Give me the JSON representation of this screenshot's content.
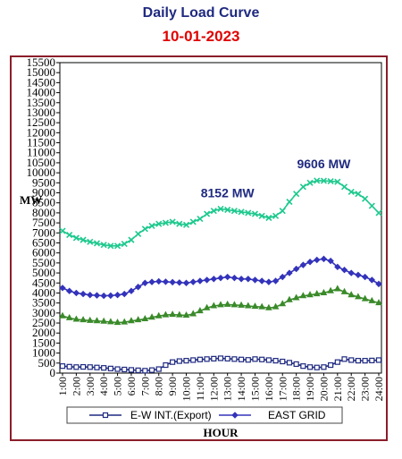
{
  "header": {
    "title": "Daily Load Curve",
    "date": "10-01-2023"
  },
  "colors": {
    "title": "#1f2a80",
    "date": "#e00000",
    "border": "#8b1d2a"
  },
  "chart_data": {
    "type": "line",
    "title": "Daily Load Curve",
    "subtitle": "10-01-2023",
    "xlabel": "HOUR",
    "ylabel": "MW",
    "ylim": [
      0,
      15500
    ],
    "yticks": [
      0,
      500,
      1000,
      1500,
      2000,
      2500,
      3000,
      3500,
      4000,
      4500,
      5000,
      5500,
      6000,
      6500,
      7000,
      7500,
      8000,
      8500,
      9000,
      9500,
      10000,
      10500,
      11000,
      11500,
      12000,
      12500,
      13000,
      13500,
      14000,
      14500,
      15000,
      15500
    ],
    "x": [
      "1:00",
      "1:30",
      "2:00",
      "2:30",
      "3:00",
      "3:30",
      "4:00",
      "4:30",
      "5:00",
      "5:30",
      "6:00",
      "6:30",
      "7:00",
      "7:30",
      "8:00",
      "8:30",
      "9:00",
      "9:30",
      "10:00",
      "10:30",
      "11:00",
      "11:30",
      "12:00",
      "12:30",
      "13:00",
      "13:30",
      "14:00",
      "14:30",
      "15:00",
      "15:30",
      "16:00",
      "16:30",
      "17:00",
      "17:30",
      "18:00",
      "18:30",
      "19:00",
      "19:30",
      "20:00",
      "20:30",
      "21:00",
      "21:30",
      "22:00",
      "22:30",
      "23:00",
      "23:30",
      "24:00"
    ],
    "xtick_labels": [
      "1:00",
      "2:00",
      "3:00",
      "4:00",
      "5:00",
      "6:00",
      "7:00",
      "8:00",
      "9:00",
      "10:00",
      "11:00",
      "12:00",
      "13:00",
      "14:00",
      "15:00",
      "16:00",
      "17:00",
      "18:00",
      "19:00",
      "20:00",
      "21:00",
      "22:00",
      "23:00",
      "24:00"
    ],
    "grid": false,
    "legend_position": "bottom",
    "series": [
      {
        "name": "",
        "color": "#1ec98e",
        "marker": "x",
        "values": [
          7100,
          6900,
          6750,
          6650,
          6550,
          6480,
          6400,
          6350,
          6350,
          6450,
          6650,
          6950,
          7200,
          7350,
          7450,
          7500,
          7550,
          7450,
          7400,
          7550,
          7700,
          7950,
          8100,
          8200,
          8152,
          8100,
          8050,
          8000,
          7950,
          7850,
          7750,
          7850,
          8100,
          8550,
          8950,
          9300,
          9500,
          9606,
          9600,
          9580,
          9550,
          9300,
          9050,
          8950,
          8700,
          8350,
          8000
        ]
      },
      {
        "name": "EAST GRID",
        "color": "#3333bb",
        "marker": "diamond",
        "values": [
          4250,
          4100,
          4000,
          3950,
          3900,
          3880,
          3860,
          3870,
          3900,
          3950,
          4100,
          4300,
          4500,
          4550,
          4580,
          4560,
          4540,
          4520,
          4500,
          4550,
          4600,
          4650,
          4700,
          4750,
          4800,
          4750,
          4700,
          4700,
          4650,
          4600,
          4550,
          4600,
          4800,
          5000,
          5200,
          5400,
          5550,
          5650,
          5700,
          5600,
          5300,
          5150,
          5000,
          4900,
          4800,
          4650,
          4450
        ]
      },
      {
        "name": "",
        "color": "#3a8a2a",
        "marker": "triangle",
        "values": [
          2850,
          2750,
          2680,
          2650,
          2620,
          2600,
          2580,
          2550,
          2520,
          2540,
          2600,
          2650,
          2700,
          2780,
          2850,
          2900,
          2920,
          2900,
          2880,
          2950,
          3100,
          3250,
          3350,
          3400,
          3420,
          3400,
          3380,
          3350,
          3320,
          3300,
          3250,
          3300,
          3450,
          3650,
          3750,
          3850,
          3900,
          3950,
          4000,
          4100,
          4200,
          4050,
          3900,
          3800,
          3700,
          3600,
          3500
        ]
      },
      {
        "name": "E-W INT.(Export)",
        "color": "#1f2a80",
        "marker": "square",
        "values": [
          350,
          320,
          300,
          310,
          300,
          280,
          260,
          230,
          200,
          180,
          160,
          140,
          120,
          150,
          200,
          400,
          550,
          600,
          620,
          650,
          680,
          700,
          720,
          740,
          720,
          700,
          680,
          660,
          700,
          680,
          650,
          620,
          580,
          520,
          450,
          350,
          300,
          280,
          300,
          400,
          550,
          700,
          650,
          620,
          620,
          630,
          650
        ]
      }
    ],
    "annotations": [
      {
        "text": "8152 MW",
        "x": "13:00",
        "y": 8152,
        "color": "#1f2a80"
      },
      {
        "text": "9606 MW",
        "x": "20:00",
        "y": 9606,
        "color": "#1f2a80"
      }
    ]
  }
}
